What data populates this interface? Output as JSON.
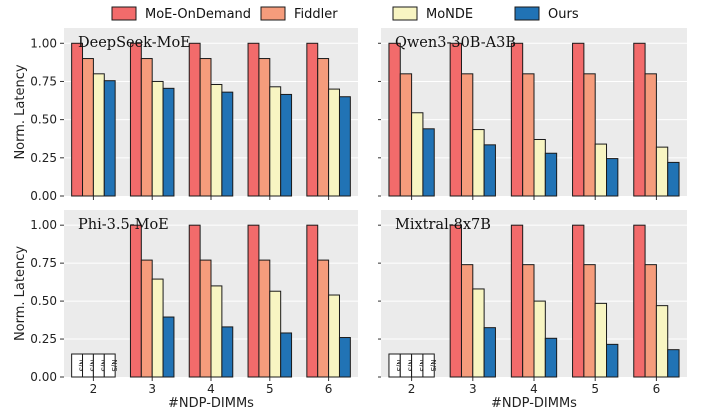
{
  "colors": {
    "panel_bg": "#ebebeb",
    "grid": "#ffffff",
    "bar_edge": "#1a1a1a",
    "series": [
      "#f26b6b",
      "#f59c7c",
      "#f8f5c2",
      "#2173b5"
    ]
  },
  "legend": {
    "placement": "top-center",
    "items": [
      "MoE-OnDemand",
      "Fiddler",
      "MoNDE",
      "Ours"
    ]
  },
  "ns_label": "N/S",
  "chart_data": [
    {
      "type": "bar",
      "title": "DeepSeek-MoE",
      "categories": [
        "2",
        "3",
        "4",
        "5",
        "6"
      ],
      "ylim": [
        0,
        1.1
      ],
      "yticks": [
        "0.00",
        "0.25",
        "0.50",
        "0.75",
        "1.00"
      ],
      "ytick_values": [
        0,
        0.25,
        0.5,
        0.75,
        1.0
      ],
      "ylabel": "Norm. Latency",
      "xlabel": "",
      "grid": true,
      "unsupported_categories": [],
      "series": [
        {
          "name": "MoE-OnDemand",
          "values": [
            1.0,
            1.0,
            1.0,
            1.0,
            1.0
          ]
        },
        {
          "name": "Fiddler",
          "values": [
            0.9,
            0.9,
            0.9,
            0.9,
            0.9
          ]
        },
        {
          "name": "MoNDE",
          "values": [
            0.8,
            0.75,
            0.73,
            0.715,
            0.7
          ]
        },
        {
          "name": "Ours",
          "values": [
            0.755,
            0.705,
            0.68,
            0.665,
            0.65
          ]
        }
      ]
    },
    {
      "type": "bar",
      "title": "Qwen3-30B-A3B",
      "categories": [
        "2",
        "3",
        "4",
        "5",
        "6"
      ],
      "ylim": [
        0,
        1.1
      ],
      "yticks": [],
      "ytick_values": [],
      "ylabel": "",
      "xlabel": "",
      "grid": true,
      "unsupported_categories": [],
      "series": [
        {
          "name": "MoE-OnDemand",
          "values": [
            1.0,
            1.0,
            1.0,
            1.0,
            1.0
          ]
        },
        {
          "name": "Fiddler",
          "values": [
            0.8,
            0.8,
            0.8,
            0.8,
            0.8
          ]
        },
        {
          "name": "MoNDE",
          "values": [
            0.545,
            0.435,
            0.37,
            0.34,
            0.32
          ]
        },
        {
          "name": "Ours",
          "values": [
            0.44,
            0.335,
            0.28,
            0.245,
            0.22
          ]
        }
      ]
    },
    {
      "type": "bar",
      "title": "Phi-3.5-MoE",
      "categories": [
        "2",
        "3",
        "4",
        "5",
        "6"
      ],
      "ylim": [
        0,
        1.1
      ],
      "yticks": [
        "0.00",
        "0.25",
        "0.50",
        "0.75",
        "1.00"
      ],
      "ytick_values": [
        0,
        0.25,
        0.5,
        0.75,
        1.0
      ],
      "ylabel": "Norm. Latency",
      "xlabel": "#NDP-DIMMs",
      "grid": true,
      "unsupported_categories": [
        "2"
      ],
      "series": [
        {
          "name": "MoE-OnDemand",
          "values": [
            null,
            1.0,
            1.0,
            1.0,
            1.0
          ]
        },
        {
          "name": "Fiddler",
          "values": [
            null,
            0.77,
            0.77,
            0.77,
            0.77
          ]
        },
        {
          "name": "MoNDE",
          "values": [
            null,
            0.645,
            0.6,
            0.565,
            0.54
          ]
        },
        {
          "name": "Ours",
          "values": [
            null,
            0.395,
            0.33,
            0.29,
            0.26
          ]
        }
      ]
    },
    {
      "type": "bar",
      "title": "Mixtral-8x7B",
      "categories": [
        "2",
        "3",
        "4",
        "5",
        "6"
      ],
      "ylim": [
        0,
        1.1
      ],
      "yticks": [],
      "ytick_values": [],
      "ylabel": "",
      "xlabel": "#NDP-DIMMs",
      "grid": true,
      "unsupported_categories": [
        "2"
      ],
      "series": [
        {
          "name": "MoE-OnDemand",
          "values": [
            null,
            1.0,
            1.0,
            1.0,
            1.0
          ]
        },
        {
          "name": "Fiddler",
          "values": [
            null,
            0.74,
            0.74,
            0.74,
            0.74
          ]
        },
        {
          "name": "MoNDE",
          "values": [
            null,
            0.58,
            0.5,
            0.485,
            0.47
          ]
        },
        {
          "name": "Ours",
          "values": [
            null,
            0.325,
            0.255,
            0.215,
            0.18
          ]
        }
      ]
    }
  ]
}
